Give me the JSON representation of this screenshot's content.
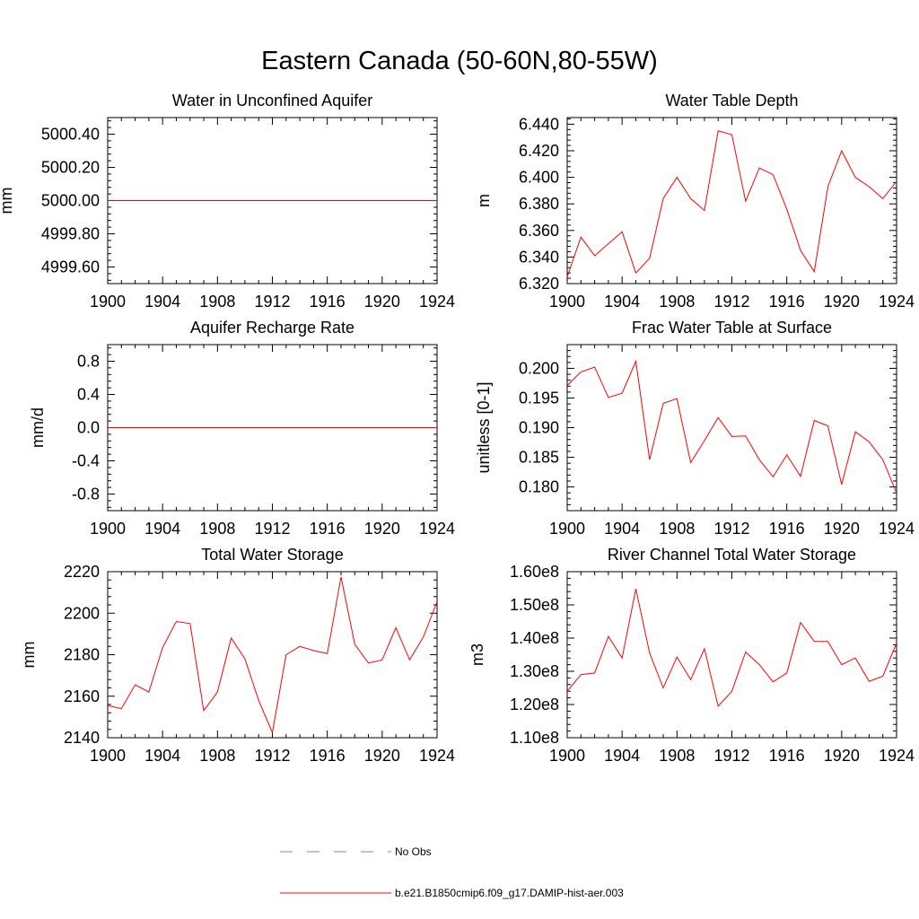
{
  "figure": {
    "title": "Eastern Canada (50-60N,80-55W)"
  },
  "legend": [
    {
      "label": "No Obs",
      "color": "#7f7fd0",
      "style": "dashed"
    },
    {
      "label": "b.e21.B1850cmip6.f09_g17.DAMIP-hist-aer.003",
      "color": "#ff0000",
      "style": "solid"
    }
  ],
  "chart_data": [
    {
      "type": "line",
      "title": "Water in Unconfined Aquifer",
      "ylabel": "mm",
      "xlim": [
        1900,
        1924
      ],
      "ylim": [
        4999.5,
        5000.5
      ],
      "xticks": [
        "1900",
        "1904",
        "1908",
        "1912",
        "1916",
        "1920",
        "1924"
      ],
      "yticks": [
        "4999.60",
        "4999.80",
        "5000.00",
        "5000.20",
        "5000.40"
      ],
      "series": [
        {
          "color": "#ff0000",
          "x": [
            1900,
            1901,
            1902,
            1903,
            1904,
            1905,
            1906,
            1907,
            1908,
            1909,
            1910,
            1911,
            1912,
            1913,
            1914,
            1915,
            1916,
            1917,
            1918,
            1919,
            1920,
            1921,
            1922,
            1923,
            1924
          ],
          "values": [
            5000,
            5000,
            5000,
            5000,
            5000,
            5000,
            5000,
            5000,
            5000,
            5000,
            5000,
            5000,
            5000,
            5000,
            5000,
            5000,
            5000,
            5000,
            5000,
            5000,
            5000,
            5000,
            5000,
            5000,
            5000
          ]
        }
      ]
    },
    {
      "type": "line",
      "title": "Water Table Depth",
      "ylabel": "m",
      "xlim": [
        1900,
        1924
      ],
      "ylim": [
        6.32,
        6.445
      ],
      "xticks": [
        "1900",
        "1904",
        "1908",
        "1912",
        "1916",
        "1920",
        "1924"
      ],
      "yticks": [
        "6.320",
        "6.340",
        "6.360",
        "6.380",
        "6.400",
        "6.420",
        "6.440"
      ],
      "series": [
        {
          "color": "#ff0000",
          "x": [
            1900,
            1901,
            1902,
            1903,
            1904,
            1905,
            1906,
            1907,
            1908,
            1909,
            1910,
            1911,
            1912,
            1913,
            1914,
            1915,
            1916,
            1917,
            1918,
            1919,
            1920,
            1921,
            1922,
            1923,
            1924
          ],
          "values": [
            6.325,
            6.355,
            6.341,
            6.35,
            6.359,
            6.328,
            6.339,
            6.384,
            6.4,
            6.384,
            6.375,
            6.435,
            6.432,
            6.382,
            6.407,
            6.402,
            6.376,
            6.345,
            6.329,
            6.393,
            6.42,
            6.4,
            6.393,
            6.384,
            6.397
          ]
        }
      ]
    },
    {
      "type": "line",
      "title": "Aquifer Recharge Rate",
      "ylabel": "mm/d",
      "xlim": [
        1900,
        1924
      ],
      "ylim": [
        -1.0,
        1.0
      ],
      "xticks": [
        "1900",
        "1904",
        "1908",
        "1912",
        "1916",
        "1920",
        "1924"
      ],
      "yticks": [
        "-0.8",
        "-0.4",
        "0.0",
        "0.4",
        "0.8"
      ],
      "series": [
        {
          "color": "#ff0000",
          "x": [
            1900,
            1901,
            1902,
            1903,
            1904,
            1905,
            1906,
            1907,
            1908,
            1909,
            1910,
            1911,
            1912,
            1913,
            1914,
            1915,
            1916,
            1917,
            1918,
            1919,
            1920,
            1921,
            1922,
            1923,
            1924
          ],
          "values": [
            0,
            0,
            0,
            0,
            0,
            0,
            0,
            0,
            0,
            0,
            0,
            0,
            0,
            0,
            0,
            0,
            0,
            0,
            0,
            0,
            0,
            0,
            0,
            0,
            0
          ]
        }
      ]
    },
    {
      "type": "line",
      "title": "Frac Water Table at Surface",
      "ylabel": "unitless [0-1]",
      "xlim": [
        1900,
        1924
      ],
      "ylim": [
        0.176,
        0.204
      ],
      "xticks": [
        "1900",
        "1904",
        "1908",
        "1912",
        "1916",
        "1920",
        "1924"
      ],
      "yticks": [
        "0.180",
        "0.185",
        "0.190",
        "0.195",
        "0.200"
      ],
      "series": [
        {
          "color": "#ff0000",
          "x": [
            1900,
            1901,
            1902,
            1903,
            1904,
            1905,
            1906,
            1907,
            1908,
            1909,
            1910,
            1911,
            1912,
            1913,
            1914,
            1915,
            1916,
            1917,
            1918,
            1919,
            1920,
            1921,
            1922,
            1923,
            1924
          ],
          "values": [
            0.1971,
            0.1994,
            0.2002,
            0.1951,
            0.1958,
            0.2012,
            0.1846,
            0.1941,
            0.1949,
            0.1841,
            0.1878,
            0.1917,
            0.1885,
            0.1886,
            0.1846,
            0.1817,
            0.1854,
            0.1818,
            0.1912,
            0.1903,
            0.1804,
            0.1893,
            0.1876,
            0.1846,
            0.179
          ]
        }
      ]
    },
    {
      "type": "line",
      "title": "Total Water Storage",
      "ylabel": "mm",
      "xlim": [
        1900,
        1924
      ],
      "ylim": [
        2140,
        2220
      ],
      "xticks": [
        "1900",
        "1904",
        "1908",
        "1912",
        "1916",
        "1920",
        "1924"
      ],
      "yticks": [
        "2140",
        "2160",
        "2180",
        "2200",
        "2220"
      ],
      "series": [
        {
          "color": "#ff0000",
          "x": [
            1900,
            1901,
            1902,
            1903,
            1904,
            1905,
            1906,
            1907,
            1908,
            1909,
            1910,
            1911,
            1912,
            1913,
            1914,
            1915,
            1916,
            1917,
            1918,
            1919,
            1920,
            1921,
            1922,
            1923,
            1924
          ],
          "values": [
            2155.5,
            2154,
            2165.5,
            2162,
            2183.5,
            2196,
            2195,
            2153,
            2162,
            2188,
            2178,
            2158,
            2142.5,
            2180,
            2184,
            2182,
            2180.5,
            2217.5,
            2185,
            2176,
            2177.5,
            2193,
            2177.5,
            2188.5,
            2205.5
          ]
        }
      ]
    },
    {
      "type": "line",
      "title": "River Channel Total Water Storage",
      "ylabel": "m3",
      "xlim": [
        1900,
        1924
      ],
      "ylim": [
        110000000.0,
        160000000.0
      ],
      "xticks": [
        "1900",
        "1904",
        "1908",
        "1912",
        "1916",
        "1920",
        "1924"
      ],
      "yticks": [
        "1.10e8",
        "1.20e8",
        "1.30e8",
        "1.40e8",
        "1.50e8",
        "1.60e8"
      ],
      "series": [
        {
          "color": "#ff0000",
          "x": [
            1900,
            1901,
            1902,
            1903,
            1904,
            1905,
            1906,
            1907,
            1908,
            1909,
            1910,
            1911,
            1912,
            1913,
            1914,
            1915,
            1916,
            1917,
            1918,
            1919,
            1920,
            1921,
            1922,
            1923,
            1924
          ],
          "values": [
            124000000.0,
            129000000.0,
            129500000.0,
            140500000.0,
            134000000.0,
            154800000.0,
            135500000.0,
            125000000.0,
            134300000.0,
            127500000.0,
            136800000.0,
            119500000.0,
            124000000.0,
            135800000.0,
            132000000.0,
            126800000.0,
            129500000.0,
            144700000.0,
            139000000.0,
            139000000.0,
            132000000.0,
            134000000.0,
            127000000.0,
            128500000.0,
            138500000.0
          ]
        }
      ]
    }
  ]
}
